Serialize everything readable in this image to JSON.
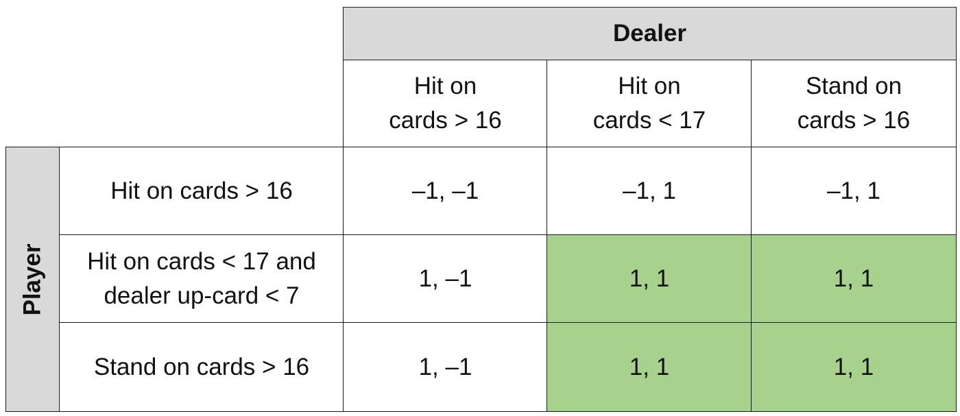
{
  "dealer_label": "Dealer",
  "player_label": "Player",
  "columns": [
    "Hit on\ncards > 16",
    "Hit on\ncards < 17",
    "Stand on\ncards > 16"
  ],
  "rows": [
    {
      "label": "Hit on cards > 16",
      "payoffs": [
        "–1, –1",
        "–1, 1",
        "–1, 1"
      ]
    },
    {
      "label": "Hit on cards < 17 and\ndealer up-card < 7",
      "payoffs": [
        "1, –1",
        "1, 1",
        "1, 1"
      ]
    },
    {
      "label": "Stand on cards > 16",
      "payoffs": [
        "1, –1",
        "1, 1",
        "1, 1"
      ]
    }
  ],
  "highlight_color": "#a9d18e",
  "header_color": "#d9d9d9"
}
